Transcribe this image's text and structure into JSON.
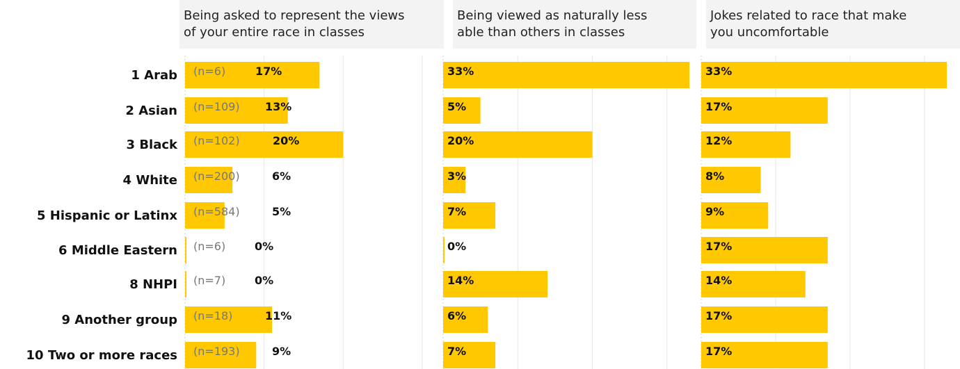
{
  "chart_data": {
    "type": "bar",
    "orientation": "horizontal",
    "categories": [
      "1 Arab",
      "2 Asian",
      "3 Black",
      "4 White",
      "5 Hispanic or Latinx",
      "6 Middle Eastern",
      "8 NHPI",
      "9 Another group",
      "10 Two or more races"
    ],
    "n_labels": [
      "(n=6)",
      "(n=109)",
      "(n=102)",
      "(n=200)",
      "(n=584)",
      "(n=6)",
      "(n=7)",
      "(n=18)",
      "(n=193)"
    ],
    "series": [
      {
        "name": "Being asked to represent the views of your entire race in classes",
        "values": [
          17,
          13,
          20,
          6,
          5,
          0,
          0,
          11,
          9
        ],
        "labels": [
          "17%",
          "13%",
          "20%",
          "6%",
          "5%",
          "0%",
          "0%",
          "11%",
          "9%"
        ]
      },
      {
        "name": "Being viewed as naturally less able than others in classes",
        "values": [
          33,
          5,
          20,
          3,
          7,
          0,
          14,
          6,
          7
        ],
        "labels": [
          "33%",
          "5%",
          "20%",
          "3%",
          "7%",
          "0%",
          "14%",
          "6%",
          "7%"
        ]
      },
      {
        "name": "Jokes related to race that make you uncomfortable",
        "values": [
          33,
          17,
          12,
          8,
          9,
          17,
          14,
          17,
          17
        ],
        "labels": [
          "33%",
          "17%",
          "12%",
          "8%",
          "9%",
          "17%",
          "14%",
          "17%",
          "17%"
        ]
      }
    ],
    "xlim": [
      0,
      33
    ],
    "grid": true,
    "legend": "none",
    "bar_color": "#FFC800"
  }
}
